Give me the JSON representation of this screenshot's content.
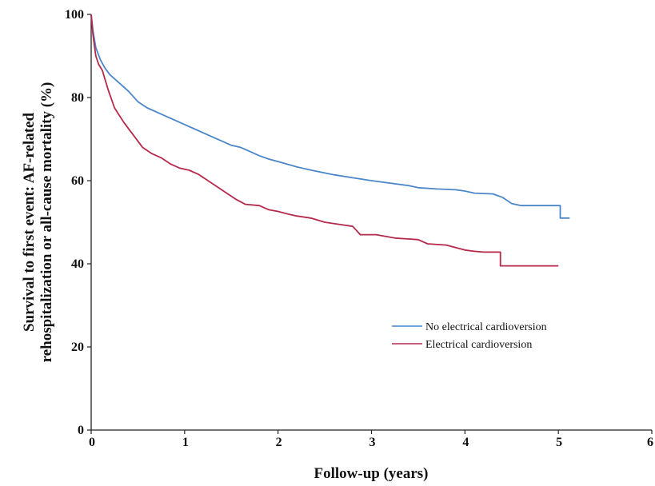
{
  "chart_data": {
    "type": "line",
    "title": "",
    "xlabel": "Follow-up (years)",
    "ylabel": [
      "Survival to first event: AF-related",
      "rehospitalization or all-cause mortality (%)"
    ],
    "xlim": [
      0,
      6
    ],
    "ylim": [
      0,
      100
    ],
    "xticks": [
      "0",
      "1",
      "2",
      "3",
      "4",
      "5",
      "6"
    ],
    "yticks": [
      "0",
      "20",
      "40",
      "60",
      "80",
      "100"
    ],
    "grid": false,
    "legend_position": "lower-right",
    "series": [
      {
        "name": "No electrical cardioversion",
        "color": "#4a86c8",
        "points": [
          [
            0,
            100
          ],
          [
            0.02,
            96
          ],
          [
            0.05,
            92
          ],
          [
            0.1,
            89
          ],
          [
            0.15,
            87
          ],
          [
            0.2,
            85.5
          ],
          [
            0.3,
            83.5
          ],
          [
            0.4,
            81.5
          ],
          [
            0.5,
            79
          ],
          [
            0.6,
            77.5
          ],
          [
            0.7,
            76.5
          ],
          [
            0.8,
            75.5
          ],
          [
            0.9,
            74.5
          ],
          [
            1.0,
            73.5
          ],
          [
            1.1,
            72.5
          ],
          [
            1.2,
            71.5
          ],
          [
            1.3,
            70.5
          ],
          [
            1.4,
            69.5
          ],
          [
            1.5,
            68.5
          ],
          [
            1.6,
            68
          ],
          [
            1.7,
            67
          ],
          [
            1.8,
            66
          ],
          [
            1.9,
            65.2
          ],
          [
            2.0,
            64.6
          ],
          [
            2.2,
            63.3
          ],
          [
            2.4,
            62.3
          ],
          [
            2.6,
            61.4
          ],
          [
            2.8,
            60.7
          ],
          [
            3.0,
            60
          ],
          [
            3.2,
            59.4
          ],
          [
            3.4,
            58.8
          ],
          [
            3.5,
            58.3
          ],
          [
            3.7,
            58
          ],
          [
            3.9,
            57.8
          ],
          [
            4.0,
            57.5
          ],
          [
            4.1,
            57
          ],
          [
            4.3,
            56.8
          ],
          [
            4.4,
            56
          ],
          [
            4.5,
            54.5
          ],
          [
            4.6,
            54
          ],
          [
            4.8,
            54
          ],
          [
            5.02,
            54
          ],
          [
            5.02,
            51
          ],
          [
            5.12,
            51
          ]
        ]
      },
      {
        "name": "Electrical cardioversion",
        "color": "#b5294a",
        "points": [
          [
            0,
            100
          ],
          [
            0.02,
            95
          ],
          [
            0.05,
            90
          ],
          [
            0.08,
            88
          ],
          [
            0.12,
            86.5
          ],
          [
            0.18,
            82
          ],
          [
            0.25,
            77.5
          ],
          [
            0.35,
            74
          ],
          [
            0.45,
            71
          ],
          [
            0.55,
            68
          ],
          [
            0.65,
            66.5
          ],
          [
            0.75,
            65.5
          ],
          [
            0.85,
            64
          ],
          [
            0.95,
            63
          ],
          [
            1.05,
            62.5
          ],
          [
            1.15,
            61.5
          ],
          [
            1.25,
            60
          ],
          [
            1.35,
            58.5
          ],
          [
            1.45,
            57
          ],
          [
            1.55,
            55.5
          ],
          [
            1.65,
            54.3
          ],
          [
            1.8,
            54
          ],
          [
            1.9,
            53
          ],
          [
            2.0,
            52.6
          ],
          [
            2.1,
            52
          ],
          [
            2.2,
            51.5
          ],
          [
            2.35,
            51
          ],
          [
            2.5,
            50
          ],
          [
            2.65,
            49.5
          ],
          [
            2.8,
            49
          ],
          [
            2.88,
            47
          ],
          [
            3.05,
            47
          ],
          [
            3.25,
            46.2
          ],
          [
            3.5,
            45.8
          ],
          [
            3.6,
            44.8
          ],
          [
            3.8,
            44.5
          ],
          [
            4.0,
            43.3
          ],
          [
            4.1,
            43
          ],
          [
            4.2,
            42.8
          ],
          [
            4.38,
            42.8
          ],
          [
            4.38,
            39.5
          ],
          [
            5.0,
            39.5
          ]
        ]
      }
    ]
  }
}
